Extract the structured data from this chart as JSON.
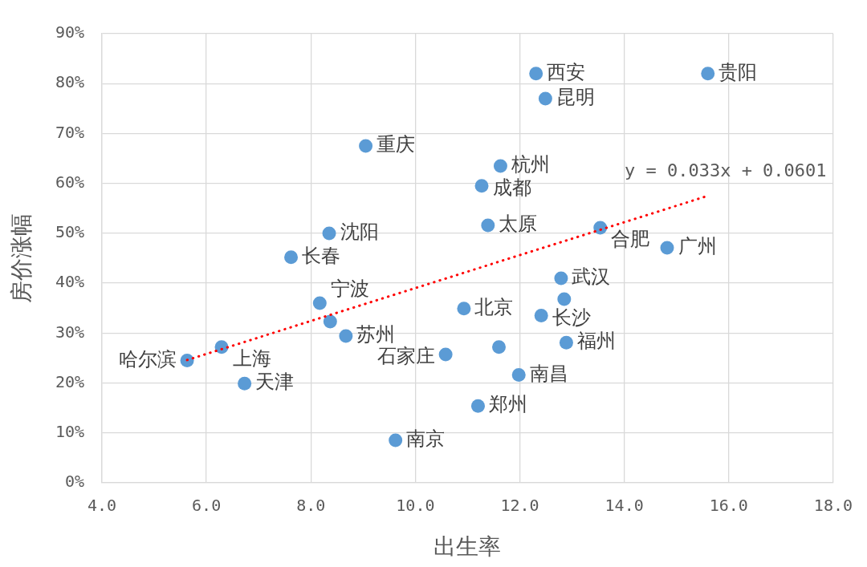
{
  "chart_data": {
    "type": "scatter",
    "xlabel": "出生率",
    "ylabel": "房价涨幅",
    "xlim": [
      4,
      18
    ],
    "xticks": [
      {
        "value": 4,
        "label": "4.0"
      },
      {
        "value": 6,
        "label": "6.0"
      },
      {
        "value": 8,
        "label": "8.0"
      },
      {
        "value": 10,
        "label": "10.0"
      },
      {
        "value": 12,
        "label": "12.0"
      },
      {
        "value": 14,
        "label": "14.0"
      },
      {
        "value": 16,
        "label": "16.0"
      },
      {
        "value": 18,
        "label": "18.0"
      }
    ],
    "ylim": [
      0,
      0.9
    ],
    "yticks": [
      {
        "value": 0,
        "label": "0%"
      },
      {
        "value": 0.1,
        "label": "10%"
      },
      {
        "value": 0.2,
        "label": "20%"
      },
      {
        "value": 0.3,
        "label": "30%"
      },
      {
        "value": 0.4,
        "label": "40%"
      },
      {
        "value": 0.5,
        "label": "50%"
      },
      {
        "value": 0.6,
        "label": "60%"
      },
      {
        "value": 0.7,
        "label": "70%"
      },
      {
        "value": 0.8,
        "label": "80%"
      },
      {
        "value": 0.9,
        "label": "90%"
      }
    ],
    "grid": true,
    "marker": "circle",
    "series": [
      {
        "type": "scatter",
        "color": "#5b9bd5",
        "x": [
          12.31,
          15.6,
          12.49,
          9.05,
          11.63,
          11.27,
          11.39,
          13.54,
          8.35,
          7.62,
          14.82,
          12.79,
          12.85,
          8.17,
          10.93,
          12.41,
          8.37,
          8.67,
          12.89,
          6.29,
          11.6,
          10.58,
          5.63,
          11.98,
          6.73,
          11.2,
          9.62
        ],
        "values": [
          0.82,
          0.82,
          0.77,
          0.675,
          0.635,
          0.595,
          0.516,
          0.511,
          0.5,
          0.452,
          0.471,
          0.41,
          0.368,
          0.36,
          0.349,
          0.335,
          0.323,
          0.294,
          0.281,
          0.272,
          0.272,
          0.257,
          0.245,
          0.216,
          0.199,
          0.154,
          0.085
        ]
      },
      {
        "type": "line",
        "color": "#ff0000",
        "line_style": "dotted",
        "marker": "none",
        "x": [
          5.63,
          15.6
        ],
        "values": [
          0.246,
          0.575
        ]
      }
    ],
    "annotations": [
      "y = 0.033x + 0.0601",
      {
        "text": "西安",
        "x": 12.31,
        "y": 0.82
      },
      {
        "text": "贵阳",
        "x": 15.6,
        "y": 0.82
      },
      {
        "text": "昆明",
        "x": 12.49,
        "y": 0.77
      },
      {
        "text": "重庆",
        "x": 9.05,
        "y": 0.675
      },
      {
        "text": "杭州",
        "x": 11.63,
        "y": 0.635
      },
      {
        "text": "成都",
        "x": 11.27,
        "y": 0.595
      },
      {
        "text": "太原",
        "x": 11.39,
        "y": 0.516
      },
      {
        "text": "合肥",
        "x": 13.54,
        "y": 0.511
      },
      {
        "text": "沈阳",
        "x": 8.35,
        "y": 0.5
      },
      {
        "text": "长春",
        "x": 7.62,
        "y": 0.452
      },
      {
        "text": "广州",
        "x": 14.82,
        "y": 0.471
      },
      {
        "text": "武汉",
        "x": 12.79,
        "y": 0.41
      },
      {
        "text": "宁波",
        "x": 8.17,
        "y": 0.36
      },
      {
        "text": "北京",
        "x": 10.93,
        "y": 0.349
      },
      {
        "text": "长沙",
        "x": 12.41,
        "y": 0.335
      },
      {
        "text": "苏州",
        "x": 8.67,
        "y": 0.294
      },
      {
        "text": "福州",
        "x": 12.89,
        "y": 0.281
      },
      {
        "text": "上海",
        "x": 6.29,
        "y": 0.272
      },
      {
        "text": "石家庄",
        "x": 10.58,
        "y": 0.257
      },
      {
        "text": "哈尔滨",
        "x": 5.63,
        "y": 0.245
      },
      {
        "text": "南昌",
        "x": 11.98,
        "y": 0.216
      },
      {
        "text": "天津",
        "x": 6.73,
        "y": 0.199
      },
      {
        "text": "郑州",
        "x": 11.2,
        "y": 0.154
      },
      {
        "text": "南京",
        "x": 9.62,
        "y": 0.085
      }
    ]
  }
}
